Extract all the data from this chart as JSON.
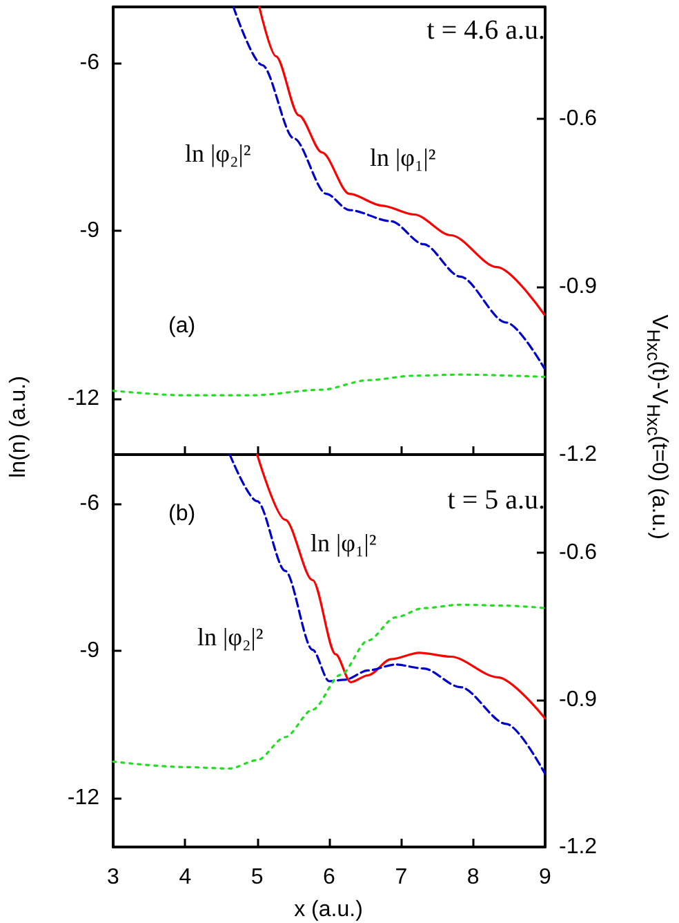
{
  "chart_data": [
    {
      "type": "line",
      "ylabel": "ln(n) (a.u.)",
      "y2label": "V$_{Hxc}$(t)-V$_{Hxc}$(t=0) (a.u.)",
      "annotations": [
        "t = 4.6 a.u.",
        "(a)"
      ],
      "xlim": [
        3,
        9
      ],
      "xticks": [
        3,
        4,
        5,
        6,
        7,
        8,
        9
      ],
      "ylim": [
        -13,
        -5
      ],
      "yticks": [
        -6,
        -9,
        -12
      ],
      "y2lim": [
        -1.2,
        -0.4
      ],
      "y2ticks": [
        -1.2,
        -0.9,
        -0.6
      ],
      "tick_labels": "y",
      "marker": "none",
      "series": [
        {
          "name": "ln |φ₁|²",
          "color": "#ff0000",
          "line_style": "solid",
          "x": [
            5.03,
            5.26,
            5.58,
            5.9,
            6.28,
            6.73,
            7.18,
            7.69,
            8.33,
            8.99
          ],
          "values": [
            -5,
            -5.88,
            -6.94,
            -7.6,
            -8.34,
            -8.55,
            -8.71,
            -9.08,
            -9.65,
            -10.5
          ]
        },
        {
          "name": "ln |φ₂|²",
          "color": "#0000cc",
          "line_style": "dashed",
          "x": [
            4.67,
            5.07,
            5.51,
            5.96,
            6.28,
            6.86,
            7.31,
            7.82,
            8.46,
            8.99
          ],
          "values": [
            -5,
            -6.04,
            -7.35,
            -8.34,
            -8.63,
            -8.83,
            -9.24,
            -9.82,
            -10.64,
            -11.46
          ]
        },
        {
          "color": "#22dd22",
          "line_style": "dotted",
          "axis": "y2",
          "x": [
            3,
            3.98,
            4.94,
            5.9,
            6.54,
            7.18,
            7.82,
            8.99
          ],
          "values": [
            -1.086,
            -1.094,
            -1.094,
            -1.084,
            -1.067,
            -1.059,
            -1.057,
            -1.061
          ]
        }
      ]
    },
    {
      "type": "line",
      "xlabel": "x (a.u.)",
      "annotations": [
        "t = 5 a.u.",
        "(b)"
      ],
      "xlim": [
        3,
        9
      ],
      "xticks": [
        3,
        4,
        5,
        6,
        7,
        8,
        9
      ],
      "ylim": [
        -13,
        -5
      ],
      "yticks": [
        -6,
        -9,
        -12
      ],
      "y2lim": [
        -1.2,
        -0.4
      ],
      "y2ticks": [
        -1.2,
        -0.9,
        -0.6
      ],
      "marker": "none",
      "series": [
        {
          "name": "ln |φ₁|²",
          "color": "#ff0000",
          "line_style": "solid",
          "x": [
            5.0,
            5.39,
            5.77,
            6.09,
            6.3,
            6.54,
            6.86,
            7.25,
            7.69,
            8.34,
            9.0
          ],
          "values": [
            -5,
            -6.33,
            -7.56,
            -9.07,
            -9.64,
            -9.5,
            -9.17,
            -9.04,
            -9.12,
            -9.54,
            -10.38
          ]
        },
        {
          "name": "ln |φ₂|²",
          "color": "#0000cc",
          "line_style": "dashed",
          "x": [
            4.62,
            5.0,
            5.39,
            5.77,
            6.0,
            6.22,
            6.54,
            6.92,
            7.31,
            7.82,
            8.46,
            9.0
          ],
          "values": [
            -5,
            -5.95,
            -7.37,
            -8.98,
            -9.62,
            -9.59,
            -9.4,
            -9.28,
            -9.36,
            -9.74,
            -10.49,
            -11.51
          ]
        },
        {
          "color": "#22dd22",
          "line_style": "dotted",
          "axis": "y2",
          "x": [
            3,
            3.98,
            4.62,
            5.0,
            5.39,
            5.77,
            6.16,
            6.54,
            6.92,
            7.31,
            7.82,
            8.46,
            9.0
          ],
          "values": [
            -1.026,
            -1.037,
            -1.04,
            -1.023,
            -0.976,
            -0.92,
            -0.849,
            -0.779,
            -0.732,
            -0.713,
            -0.706,
            -0.708,
            -0.713
          ]
        }
      ]
    }
  ]
}
